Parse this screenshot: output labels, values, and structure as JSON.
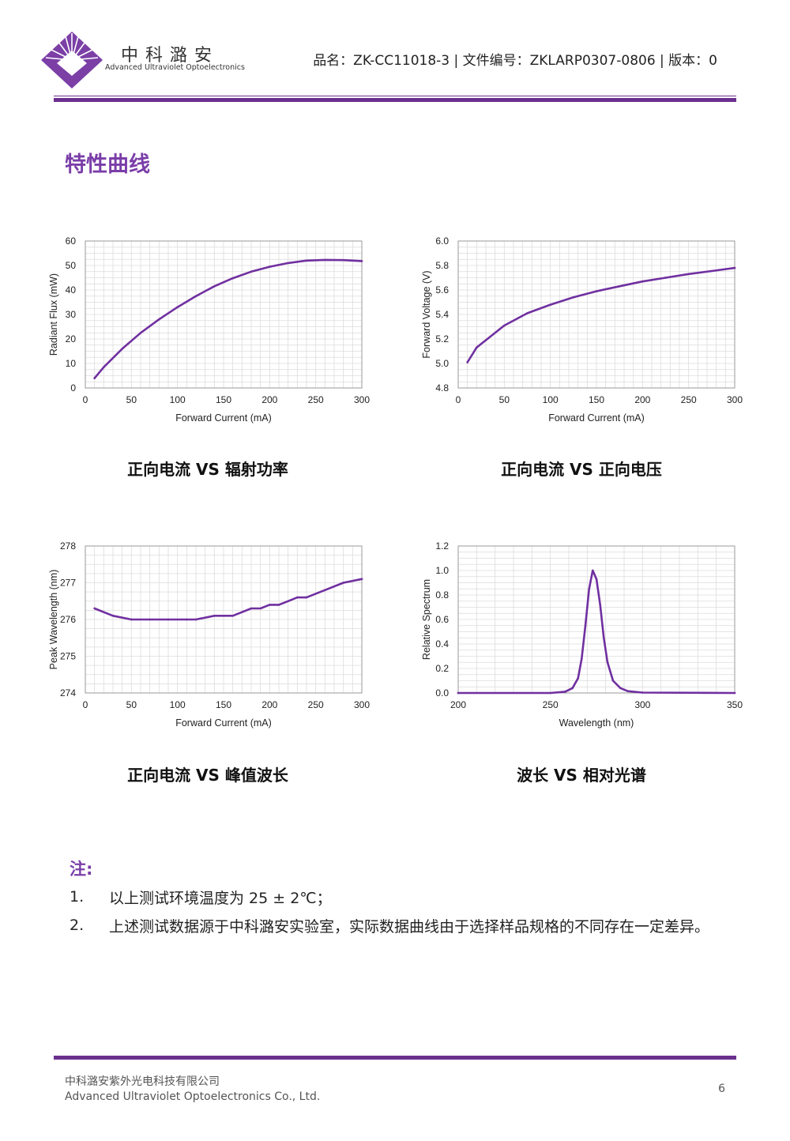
{
  "header": {
    "logo_cn": "中科潞安",
    "logo_en": "Advanced Ultraviolet Optoelectronics",
    "info": "品名：ZK-CC11018-3 | 文件编号：ZKLARP0307-0806 | 版本：0",
    "brand_color": "#6b2f8e"
  },
  "section_title": "特性曲线",
  "chart_data": [
    {
      "type": "line",
      "caption": "正向电流 VS 辐射功率",
      "xlabel": "Forward Current (mA)",
      "ylabel": "Radiant Flux (mW)",
      "xlim": [
        0,
        300
      ],
      "ylim": [
        0,
        60
      ],
      "xticks": [
        "0",
        "50",
        "100",
        "150",
        "200",
        "250",
        "300"
      ],
      "yticks": [
        "0",
        "10",
        "20",
        "30",
        "40",
        "50",
        "60"
      ],
      "grid": true,
      "line_color": "#7030a0",
      "x": [
        10,
        20,
        40,
        60,
        80,
        100,
        120,
        140,
        160,
        180,
        200,
        220,
        240,
        260,
        280,
        300
      ],
      "y": [
        4,
        8.5,
        16,
        22.5,
        28,
        33,
        37.5,
        41.5,
        44.8,
        47.5,
        49.5,
        51,
        52,
        52.3,
        52.2,
        51.8
      ]
    },
    {
      "type": "line",
      "caption": "正向电流 VS 正向电压",
      "xlabel": "Forward Current (mA)",
      "ylabel": "Forward Voltage (V)",
      "xlim": [
        0,
        300
      ],
      "ylim": [
        4.8,
        6.0
      ],
      "xticks": [
        "0",
        "50",
        "100",
        "150",
        "200",
        "250",
        "300"
      ],
      "yticks": [
        "4.8",
        "5.0",
        "5.2",
        "5.4",
        "5.6",
        "5.8",
        "6.0"
      ],
      "grid": true,
      "line_color": "#7030a0",
      "x": [
        10,
        20,
        30,
        50,
        75,
        100,
        125,
        150,
        175,
        200,
        225,
        250,
        275,
        300
      ],
      "y": [
        5.01,
        5.13,
        5.19,
        5.31,
        5.41,
        5.48,
        5.54,
        5.59,
        5.63,
        5.67,
        5.7,
        5.73,
        5.755,
        5.78
      ]
    },
    {
      "type": "line",
      "caption": "正向电流 VS 峰值波长",
      "xlabel": "Forward Current (mA)",
      "ylabel": "Peak Wavelength (nm)",
      "xlim": [
        0,
        300
      ],
      "ylim": [
        274,
        278
      ],
      "xticks": [
        "0",
        "50",
        "100",
        "150",
        "200",
        "250",
        "300"
      ],
      "yticks": [
        "274",
        "275",
        "276",
        "277",
        "278"
      ],
      "grid": true,
      "line_color": "#7030a0",
      "x": [
        10,
        30,
        50,
        70,
        90,
        110,
        120,
        140,
        160,
        170,
        180,
        190,
        200,
        210,
        220,
        230,
        240,
        260,
        280,
        300
      ],
      "y": [
        276.3,
        276.1,
        276,
        276,
        276,
        276,
        276,
        276.1,
        276.1,
        276.2,
        276.3,
        276.3,
        276.4,
        276.4,
        276.5,
        276.6,
        276.6,
        276.8,
        277,
        277.1
      ]
    },
    {
      "type": "line",
      "caption": "波长 VS 相对光谱",
      "xlabel": "Wavelength (nm)",
      "ylabel": "Relative Spectrum",
      "xlim": [
        200,
        350
      ],
      "ylim": [
        0,
        1.2
      ],
      "xticks": [
        "200",
        "250",
        "300",
        "350"
      ],
      "yticks": [
        "0.0",
        "0.2",
        "0.4",
        "0.6",
        "0.8",
        "1.0",
        "1.2"
      ],
      "grid": true,
      "line_color": "#7030a0",
      "x": [
        200,
        250,
        258,
        262,
        265,
        267,
        269,
        271,
        273,
        275,
        277,
        279,
        281,
        284,
        288,
        292,
        300,
        350
      ],
      "y": [
        0,
        0,
        0.01,
        0.04,
        0.12,
        0.28,
        0.55,
        0.85,
        1.0,
        0.93,
        0.72,
        0.45,
        0.25,
        0.1,
        0.04,
        0.015,
        0.003,
        0
      ]
    }
  ],
  "notes": {
    "title": "注:",
    "items": [
      {
        "num": "1.",
        "text": "以上测试环境温度为 25 ± 2℃；"
      },
      {
        "num": "2.",
        "text": "上述测试数据源于中科潞安实验室，实际数据曲线由于选择样品规格的不同存在一定差异。"
      }
    ]
  },
  "footer": {
    "company_cn": "中科潞安紫外光电科技有限公司",
    "company_en": "Advanced Ultraviolet Optoelectronics Co., Ltd.",
    "page": "6"
  }
}
